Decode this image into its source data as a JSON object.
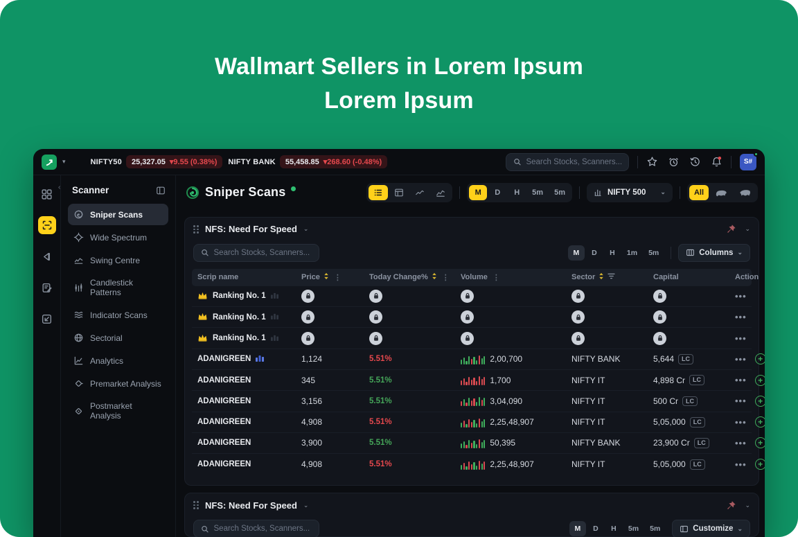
{
  "hero": {
    "title_line1": "Wallmart Sellers in Lorem Ipsum",
    "title_line2": "Lorem Ipsum"
  },
  "colors": {
    "background_green": "#0f9465",
    "accent_yellow": "#ffd11a",
    "negative_red": "#e5484d",
    "positive_green": "#45a559",
    "avatar_blue": "#3a57c2",
    "pin_red": "#a85a60",
    "spark_green": "#3fae5c",
    "spark_red": "#d84a50"
  },
  "topbar": {
    "logo_icon": "growth-arrow-icon",
    "indices": [
      {
        "name": "NIFTY50",
        "value": "25,327.05",
        "change": "9.55 (0.38%)",
        "direction": "down"
      },
      {
        "name": "NIFTY BANK",
        "value": "55,458.85",
        "change": "268.60 (-0.48%)",
        "direction": "down"
      }
    ],
    "search_placeholder": "Search Stocks, Scanners...",
    "icons": [
      "star-icon",
      "alarm-icon",
      "history-icon",
      "bell-icon"
    ],
    "bell_has_notification": true,
    "avatar": "S#"
  },
  "rail": {
    "items": [
      {
        "icon": "grid-icon",
        "active": false
      },
      {
        "icon": "scanner-icon",
        "active": true
      },
      {
        "icon": "replay-icon",
        "active": false
      },
      {
        "icon": "journal-icon",
        "active": false
      },
      {
        "icon": "inbox-icon",
        "active": false
      }
    ]
  },
  "sidebar": {
    "title": "Scanner",
    "collapse_icon": "panel-collapse-icon",
    "items": [
      {
        "label": "Sniper Scans",
        "icon": "radar",
        "active": true
      },
      {
        "label": "Wide Spectrum",
        "icon": "spectrum",
        "active": false
      },
      {
        "label": "Swing Centre",
        "icon": "swing",
        "active": false
      },
      {
        "label": "Candlestick Patterns",
        "icon": "candles",
        "active": false
      },
      {
        "label": "Indicator Scans",
        "icon": "indicator",
        "active": false
      },
      {
        "label": "Sectorial",
        "icon": "globe",
        "active": false
      },
      {
        "label": "Analytics",
        "icon": "analytics",
        "active": false
      },
      {
        "label": "Premarket Analysis",
        "icon": "prediamond",
        "active": false
      },
      {
        "label": "Postmarket Analysis",
        "icon": "postdiamond",
        "active": false
      }
    ]
  },
  "main": {
    "title": "Sniper Scans",
    "status": "live",
    "views": [
      {
        "icon": "list-view-icon",
        "active": true
      },
      {
        "icon": "board-view-icon",
        "active": false
      },
      {
        "icon": "chart-view-icon",
        "active": false
      },
      {
        "icon": "chart-view-2-icon",
        "active": false
      }
    ],
    "timeframes": [
      {
        "label": "M",
        "active": true
      },
      {
        "label": "D",
        "active": false
      },
      {
        "label": "H",
        "active": false
      },
      {
        "label": "5m",
        "active": false
      },
      {
        "label": "5m",
        "active": false
      }
    ],
    "universe": "NIFTY 500",
    "sentiment": {
      "all_label": "All",
      "all_active": true,
      "icons": [
        "bear-icon",
        "bull-icon"
      ]
    }
  },
  "panel1": {
    "title": "NFS: Need For Speed",
    "pin_icon": "pushpin-icon",
    "search_placeholder": "Search Stocks, Scanners...",
    "timeframes": [
      {
        "label": "M",
        "active": true
      },
      {
        "label": "D",
        "active": false
      },
      {
        "label": "H",
        "active": false
      },
      {
        "label": "1m",
        "active": false
      },
      {
        "label": "5m",
        "active": false
      }
    ],
    "columns_label": "Columns",
    "table": {
      "headers": [
        {
          "label": "Scrip name"
        },
        {
          "label": "Price",
          "sort": true,
          "menu": true
        },
        {
          "label": "Today Change%",
          "sort": true,
          "menu": true
        },
        {
          "label": "Volume",
          "menu": true
        },
        {
          "label": "Sector",
          "sort": true,
          "filter": true
        },
        {
          "label": "Capital"
        },
        {
          "label": "Action"
        }
      ],
      "locked_rows": [
        {
          "label": "Ranking No. 1"
        },
        {
          "label": "Ranking No. 1"
        },
        {
          "label": "Ranking No. 1"
        }
      ],
      "rows": [
        {
          "scrip": "ADANIGREEN",
          "scrip_icon": "bars-blue-icon",
          "price": "1,124",
          "change": "5.51%",
          "change_color": "red",
          "spark": "ggggrggrgg",
          "volume": "2,00,700",
          "sector": "NIFTY BANK",
          "capital": "5,644",
          "capital_badge": "LC"
        },
        {
          "scrip": "ADANIGREEN",
          "scrip_icon": "",
          "price": "345",
          "change": "5.51%",
          "change_color": "green",
          "spark": "rrrrrrrrrr",
          "volume": "1,700",
          "sector": "NIFTY IT",
          "capital": "4,898 Cr",
          "capital_badge": "LC"
        },
        {
          "scrip": "ADANIGREEN",
          "scrip_icon": "",
          "price": "3,156",
          "change": "5.51%",
          "change_color": "green",
          "spark": "rgrgrrggrg",
          "volume": "3,04,090",
          "sector": "NIFTY IT",
          "capital": "500 Cr",
          "capital_badge": "LC"
        },
        {
          "scrip": "ADANIGREEN",
          "scrip_icon": "",
          "price": "4,908",
          "change": "5.51%",
          "change_color": "red",
          "spark": "grgrrggrgg",
          "volume": "2,25,48,907",
          "sector": "NIFTY IT",
          "capital": "5,05,000",
          "capital_badge": "LC"
        },
        {
          "scrip": "ADANIGREEN",
          "scrip_icon": "",
          "price": "3,900",
          "change": "5.51%",
          "change_color": "green",
          "spark": "ggrgrggrgg",
          "volume": "50,395",
          "sector": "NIFTY BANK",
          "capital": "23,900 Cr",
          "capital_badge": "LC"
        },
        {
          "scrip": "ADANIGREEN",
          "scrip_icon": "",
          "price": "4,908",
          "change": "5.51%",
          "change_color": "red",
          "spark": "grgrrggrgr",
          "volume": "2,25,48,907",
          "sector": "NIFTY IT",
          "capital": "5,05,000",
          "capital_badge": "LC"
        }
      ]
    }
  },
  "panel2": {
    "title": "NFS: Need For Speed",
    "pin_icon": "pushpin-icon",
    "search_placeholder": "Search Stocks, Scanners...",
    "timeframes": [
      {
        "label": "M",
        "active": true
      },
      {
        "label": "D",
        "active": false
      },
      {
        "label": "H",
        "active": false
      },
      {
        "label": "5m",
        "active": false
      },
      {
        "label": "5m",
        "active": false
      }
    ],
    "customize_label": "Customize"
  }
}
